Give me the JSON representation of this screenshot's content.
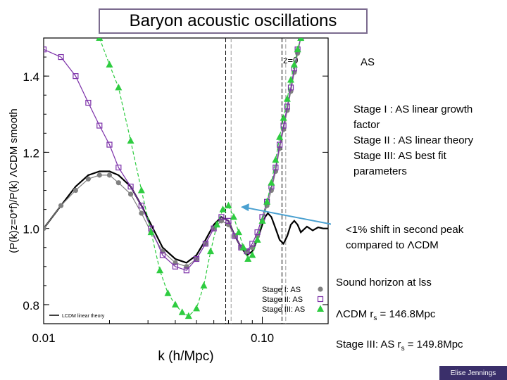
{
  "slide": {
    "title": "Baryon acoustic oscillations",
    "annotation_z": "z=0",
    "annotation_as": "AS",
    "stages": [
      "Stage I : AS linear growth",
      "factor",
      "Stage II : AS linear theory",
      "Stage III: AS best fit",
      "parameters"
    ],
    "shift_note_line1": "<1% shift in second peak",
    "shift_note_line2_prefix": "compared to ",
    "lambda": "Λ",
    "cdm": "CDM",
    "sound_horizon": "Sound horizon at lss",
    "lcdm_rs_prefix": "CDM r",
    "lcdm_rs_sub": "s",
    "lcdm_rs_value": " = 146.8Mpc",
    "stage3_rs_prefix": "Stage III: AS r",
    "stage3_rs_sub": "s",
    "stage3_rs_value": " = 149.8Mpc",
    "footer": "Elise Jennings"
  },
  "chart_data": {
    "type": "line",
    "xlabel": "k (h/Mpc)",
    "ylabel": "(P(k)z=0*f)/P(k) ΛCDM smooth",
    "x_scale": "log",
    "xlim": [
      0.01,
      0.2
    ],
    "ylim": [
      0.75,
      1.5
    ],
    "x_ticks": [
      "0.01",
      "0.10"
    ],
    "y_ticks": [
      "0.8",
      "1.0",
      "1.2",
      "1.4"
    ],
    "legend_position": "bottom-right",
    "legend_entries": [
      "Stage I: AS",
      "Stage II: AS",
      "Stage III: AS"
    ],
    "inner_legend": "LCDM linear theory",
    "arrow_color": "#4aa0d0",
    "series": [
      {
        "name": "LCDM linear theory",
        "color": "#000000",
        "x": [
          0.01,
          0.012,
          0.014,
          0.016,
          0.018,
          0.02,
          0.022,
          0.025,
          0.028,
          0.031,
          0.035,
          0.04,
          0.045,
          0.05,
          0.055,
          0.06,
          0.065,
          0.07,
          0.075,
          0.08,
          0.085,
          0.09,
          0.095,
          0.1,
          0.103,
          0.106,
          0.11,
          0.115,
          0.12,
          0.125,
          0.13,
          0.135,
          0.14,
          0.145,
          0.15,
          0.16,
          0.17,
          0.18,
          0.19,
          0.2
        ],
        "y": [
          1.0,
          1.06,
          1.11,
          1.14,
          1.15,
          1.15,
          1.14,
          1.11,
          1.06,
          1.01,
          0.95,
          0.92,
          0.91,
          0.93,
          0.97,
          1.01,
          1.03,
          1.02,
          0.98,
          0.95,
          0.93,
          0.94,
          0.97,
          1.01,
          1.03,
          1.04,
          1.03,
          1.0,
          0.97,
          0.96,
          0.98,
          1.01,
          1.02,
          1.01,
          0.99,
          1.005,
          0.995,
          1.003,
          1.0,
          1.0
        ]
      },
      {
        "name": "Stage I: AS",
        "color": "#808080",
        "x": [
          0.01,
          0.012,
          0.014,
          0.016,
          0.018,
          0.02,
          0.022,
          0.025,
          0.028,
          0.031,
          0.035,
          0.04,
          0.045,
          0.05,
          0.055,
          0.06,
          0.065,
          0.07,
          0.075,
          0.08,
          0.085,
          0.09,
          0.095,
          0.1,
          0.105,
          0.11,
          0.115,
          0.12,
          0.125,
          0.13,
          0.135,
          0.14,
          0.145,
          0.15
        ],
        "y": [
          1.0,
          1.06,
          1.1,
          1.13,
          1.14,
          1.14,
          1.12,
          1.09,
          1.04,
          0.99,
          0.94,
          0.91,
          0.9,
          0.92,
          0.96,
          1.0,
          1.02,
          1.01,
          0.98,
          0.95,
          0.94,
          0.95,
          0.98,
          1.02,
          1.06,
          1.1,
          1.15,
          1.21,
          1.26,
          1.31,
          1.36,
          1.41,
          1.46,
          1.5
        ]
      },
      {
        "name": "Stage II: AS",
        "color": "#7b2fa8",
        "x": [
          0.01,
          0.012,
          0.014,
          0.016,
          0.018,
          0.02,
          0.022,
          0.025,
          0.028,
          0.031,
          0.035,
          0.04,
          0.045,
          0.05,
          0.055,
          0.06,
          0.065,
          0.07,
          0.075,
          0.08,
          0.085,
          0.09,
          0.095,
          0.1,
          0.105,
          0.11,
          0.115,
          0.12,
          0.125,
          0.13,
          0.135,
          0.14,
          0.145,
          0.15
        ],
        "y": [
          1.47,
          1.45,
          1.4,
          1.33,
          1.27,
          1.22,
          1.16,
          1.11,
          1.06,
          1.0,
          0.93,
          0.9,
          0.89,
          0.92,
          0.96,
          1.0,
          1.03,
          1.02,
          0.98,
          0.95,
          0.94,
          0.96,
          0.99,
          1.03,
          1.07,
          1.11,
          1.16,
          1.22,
          1.27,
          1.32,
          1.37,
          1.42,
          1.47,
          1.5
        ]
      },
      {
        "name": "Stage III: AS",
        "color": "#2ecc40",
        "x": [
          0.018,
          0.02,
          0.022,
          0.025,
          0.028,
          0.031,
          0.034,
          0.037,
          0.04,
          0.043,
          0.046,
          0.05,
          0.054,
          0.058,
          0.062,
          0.066,
          0.07,
          0.074,
          0.078,
          0.082,
          0.086,
          0.09,
          0.095,
          0.1,
          0.105,
          0.11,
          0.115,
          0.12,
          0.125,
          0.13,
          0.135,
          0.14,
          0.145,
          0.15
        ],
        "y": [
          1.5,
          1.43,
          1.37,
          1.23,
          1.1,
          0.99,
          0.89,
          0.83,
          0.8,
          0.78,
          0.77,
          0.79,
          0.85,
          0.94,
          1.01,
          1.05,
          1.06,
          1.03,
          0.99,
          0.95,
          0.92,
          0.93,
          0.97,
          1.02,
          1.07,
          1.12,
          1.18,
          1.24,
          1.29,
          1.34,
          1.39,
          1.43,
          1.47,
          1.5
        ]
      }
    ]
  }
}
